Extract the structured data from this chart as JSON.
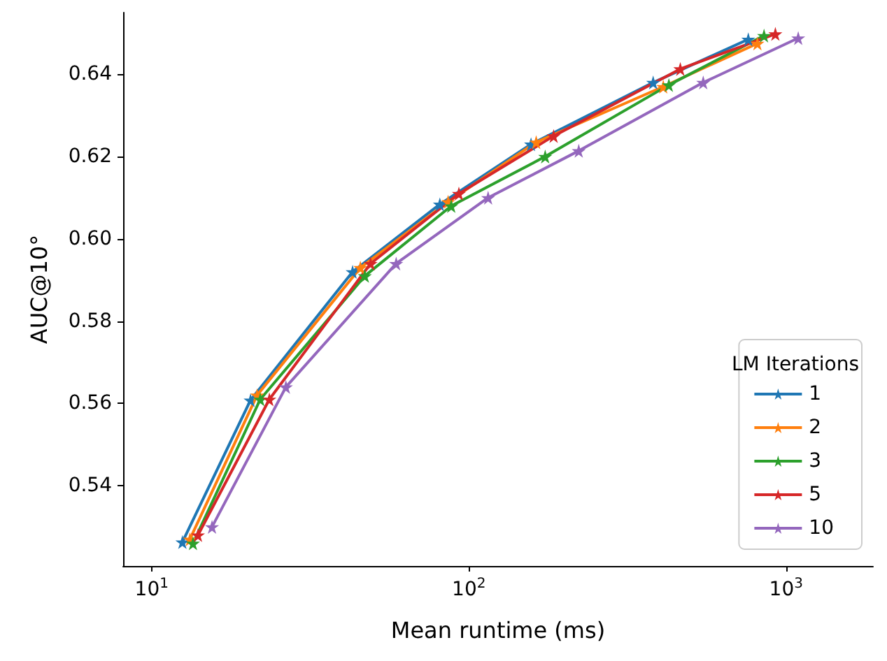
{
  "chart_data": {
    "type": "line",
    "xlabel": "Mean runtime (ms)",
    "ylabel": "AUC@10°",
    "legend_title": "LM Iterations",
    "log": "x",
    "grid": false,
    "legend": "bottom right",
    "marker": "star",
    "line_style": "solid",
    "xlim": [
      8.13,
      1879
    ],
    "xticks": [
      {
        "value": 10,
        "label": "10$^{1}$"
      },
      {
        "value": 100,
        "label": "10$^{2}$"
      },
      {
        "value": 1000,
        "label": "10$^{3}$"
      }
    ],
    "ylim": [
      0.5205,
      0.655
    ],
    "yticks": [
      0.54,
      0.56,
      0.58,
      {
        "value": 0.6,
        "label": "0.60"
      },
      0.62,
      0.64
    ],
    "series": [
      {
        "name": "1",
        "color": "#1f77b4",
        "x": [
          12.5,
          20.5,
          43,
          81,
          157,
          381,
          760
        ],
        "values": [
          0.5263,
          0.5608,
          0.592,
          0.6084,
          0.623,
          0.638,
          0.6485
        ]
      },
      {
        "name": "2",
        "color": "#ff7f0e",
        "x": [
          13.2,
          21.5,
          45.5,
          86,
          163,
          410,
          812
        ],
        "values": [
          0.527,
          0.562,
          0.593,
          0.609,
          0.6235,
          0.637,
          0.6475
        ]
      },
      {
        "name": "3",
        "color": "#2ca02c",
        "x": [
          13.5,
          22,
          47,
          88,
          174,
          427,
          852
        ],
        "values": [
          0.526,
          0.561,
          0.591,
          0.608,
          0.62,
          0.6374,
          0.6494
        ]
      },
      {
        "name": "5",
        "color": "#d62728",
        "x": [
          14,
          23.5,
          49,
          93,
          185,
          464,
          925
        ],
        "values": [
          0.528,
          0.561,
          0.594,
          0.611,
          0.625,
          0.6413,
          0.6498
        ]
      },
      {
        "name": "10",
        "color": "#9467bd",
        "x": [
          15.5,
          26.5,
          59,
          115,
          222,
          548,
          1092
        ],
        "values": [
          0.53,
          0.564,
          0.594,
          0.61,
          0.6214,
          0.638,
          0.6488
        ]
      }
    ]
  }
}
